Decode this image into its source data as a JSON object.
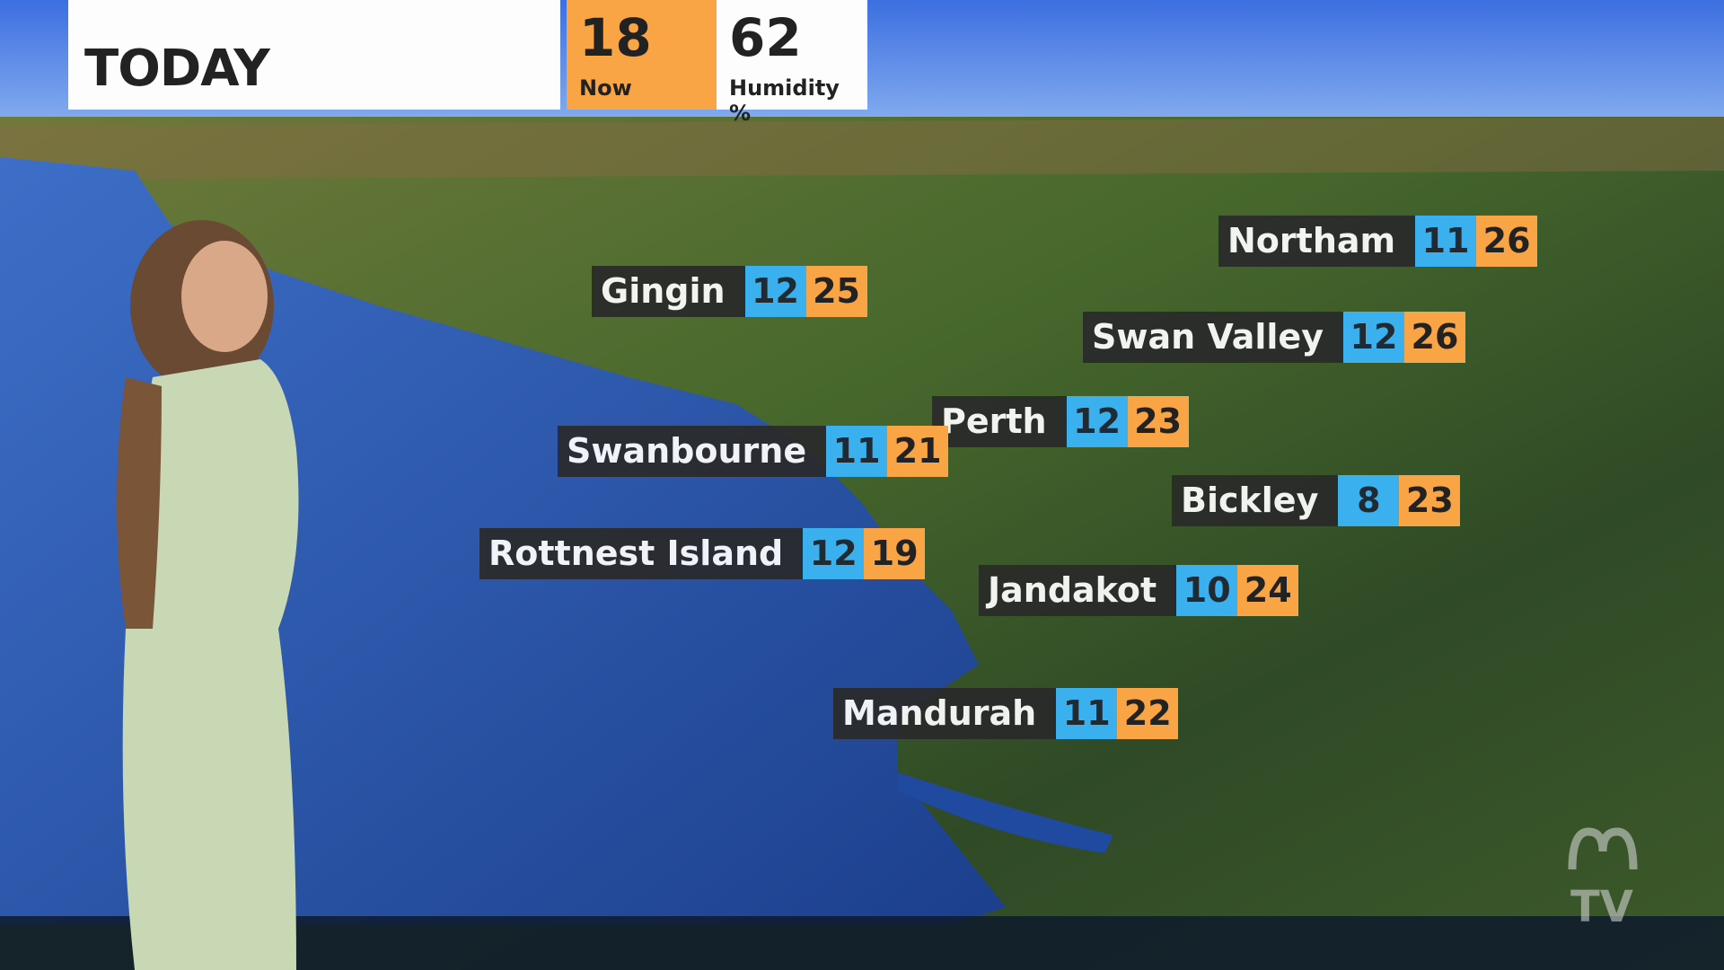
{
  "header": {
    "title": "TODAY",
    "now_value": "18",
    "now_label": "Now",
    "humidity_value": "62",
    "humidity_label": "Humidity %"
  },
  "colors": {
    "min_temp": "#3ab0ee",
    "max_temp": "#f9a445",
    "label_bg": "#2a2a2a"
  },
  "locations": [
    {
      "name": "Northam",
      "min": "11",
      "max": "26"
    },
    {
      "name": "Gingin",
      "min": "12",
      "max": "25"
    },
    {
      "name": "Swan Valley",
      "min": "12",
      "max": "26"
    },
    {
      "name": "Perth",
      "min": "12",
      "max": "23"
    },
    {
      "name": "Swanbourne",
      "min": "11",
      "max": "21"
    },
    {
      "name": "Bickley",
      "min": "8",
      "max": "23"
    },
    {
      "name": "Rottnest Island",
      "min": "12",
      "max": "19"
    },
    {
      "name": "Jandakot",
      "min": "10",
      "max": "24"
    },
    {
      "name": "Mandurah",
      "min": "11",
      "max": "22"
    }
  ],
  "logo": "ABC TV"
}
